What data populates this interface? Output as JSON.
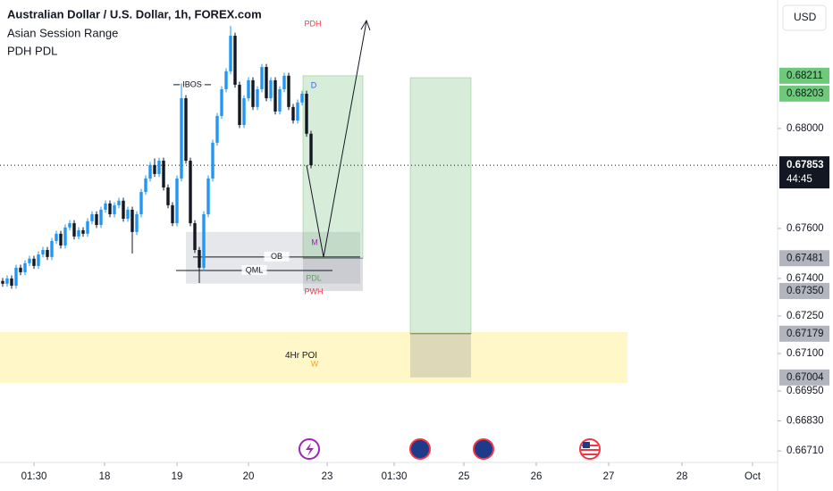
{
  "chart_data": {
    "type": "candlestick",
    "title": "Australian Dollar / U.S. Dollar, 1h, FOREX.com",
    "indicators": [
      "Asian Session Range",
      "PDH PDL"
    ],
    "currency": "USD",
    "up_color": "#2196f3",
    "down_color": "#131722",
    "open": [
      0.6739,
      0.67379,
      0.674,
      0.67371,
      0.67443,
      0.67425,
      0.67461,
      0.67479,
      0.6745,
      0.67496,
      0.67514,
      0.67486,
      0.6755,
      0.67579,
      0.67532,
      0.67604,
      0.67621,
      0.67568,
      0.67593,
      0.67579,
      0.67629,
      0.67657,
      0.67614,
      0.67675,
      0.677,
      0.67657,
      0.67693,
      0.67711,
      0.67639,
      0.67675,
      0.67586,
      0.67657,
      0.67746,
      0.678,
      0.67854,
      0.67818,
      0.67871,
      0.67764,
      0.67693,
      0.67621,
      0.678,
      0.68121,
      0.67871,
      0.67621,
      0.67514,
      0.67443,
      0.67657,
      0.678,
      0.67943,
      0.6805,
      0.68157,
      0.68229,
      0.68371,
      0.68175,
      0.68014,
      0.68121,
      0.68193,
      0.68086,
      0.68157,
      0.68246,
      0.68121,
      0.68193,
      0.68068,
      0.68157,
      0.68211,
      0.68086,
      0.68032,
      0.68104,
      0.68139,
      0.67979
    ],
    "high": [
      0.67402,
      0.67412,
      0.67412,
      0.67455,
      0.67455,
      0.67473,
      0.67491,
      0.67491,
      0.67508,
      0.67526,
      0.67526,
      0.67562,
      0.67591,
      0.67591,
      0.67616,
      0.67633,
      0.67633,
      0.67605,
      0.67605,
      0.67641,
      0.67669,
      0.67669,
      0.67687,
      0.67712,
      0.67712,
      0.67705,
      0.67723,
      0.67723,
      0.67687,
      0.67687,
      0.67669,
      0.67758,
      0.67812,
      0.67866,
      0.6788,
      0.67883,
      0.67883,
      0.67776,
      0.67705,
      0.67812,
      0.6818,
      0.68133,
      0.67883,
      0.67633,
      0.67526,
      0.67669,
      0.67812,
      0.67955,
      0.68062,
      0.68169,
      0.68241,
      0.6841,
      0.68383,
      0.68187,
      0.68133,
      0.68205,
      0.68205,
      0.68169,
      0.68258,
      0.68258,
      0.68205,
      0.68205,
      0.68169,
      0.68223,
      0.68223,
      0.68098,
      0.68116,
      0.68151,
      0.68151,
      0.67991
    ],
    "low": [
      0.67367,
      0.67367,
      0.67359,
      0.67359,
      0.67413,
      0.67413,
      0.67449,
      0.67438,
      0.67438,
      0.67484,
      0.67474,
      0.67474,
      0.67538,
      0.6752,
      0.6752,
      0.67592,
      0.67556,
      0.67556,
      0.67567,
      0.67567,
      0.67617,
      0.67602,
      0.67602,
      0.67663,
      0.67645,
      0.67645,
      0.67681,
      0.67627,
      0.67627,
      0.675,
      0.67574,
      0.67645,
      0.67734,
      0.67788,
      0.67806,
      0.67806,
      0.67752,
      0.67681,
      0.67609,
      0.67609,
      0.67788,
      0.67859,
      0.67609,
      0.67502,
      0.67382,
      0.67431,
      0.67645,
      0.67788,
      0.67931,
      0.68038,
      0.68145,
      0.68217,
      0.68163,
      0.68002,
      0.68002,
      0.68109,
      0.68074,
      0.68074,
      0.68145,
      0.68109,
      0.68109,
      0.68056,
      0.68056,
      0.68145,
      0.68074,
      0.6802,
      0.6802,
      0.68092,
      0.67967,
      0.67841
    ],
    "close": [
      0.67379,
      0.674,
      0.67371,
      0.67443,
      0.67425,
      0.67461,
      0.67479,
      0.6745,
      0.67496,
      0.67514,
      0.67486,
      0.6755,
      0.67579,
      0.67532,
      0.67604,
      0.67621,
      0.67568,
      0.67593,
      0.67579,
      0.67629,
      0.67657,
      0.67614,
      0.67675,
      0.677,
      0.67657,
      0.67693,
      0.67711,
      0.67639,
      0.67675,
      0.67586,
      0.67657,
      0.67746,
      0.678,
      0.67854,
      0.67818,
      0.67871,
      0.67764,
      0.67693,
      0.67621,
      0.678,
      0.68121,
      0.67871,
      0.67621,
      0.67514,
      0.67443,
      0.67657,
      0.678,
      0.67943,
      0.6805,
      0.68157,
      0.68229,
      0.68371,
      0.68175,
      0.68014,
      0.68121,
      0.68193,
      0.68086,
      0.68157,
      0.68246,
      0.68121,
      0.68193,
      0.68068,
      0.68157,
      0.68211,
      0.68086,
      0.68032,
      0.68104,
      0.68139,
      0.67979,
      0.67853
    ],
    "countdown": "44:45",
    "xlim": [
      -0.6,
      173.4
    ],
    "xticks": [
      {
        "value": 7,
        "label": "01:30"
      },
      {
        "value": 22.8,
        "label": "18"
      },
      {
        "value": 39,
        "label": "19"
      },
      {
        "value": 55,
        "label": "20"
      },
      {
        "value": 72.6,
        "label": "23"
      },
      {
        "value": 87.6,
        "label": "01:30"
      },
      {
        "value": 103.2,
        "label": "25"
      },
      {
        "value": 119.4,
        "label": "26"
      },
      {
        "value": 135.6,
        "label": "27"
      },
      {
        "value": 152,
        "label": "28"
      },
      {
        "value": 167.8,
        "label": "Oct"
      }
    ],
    "ylim": [
      0.66664,
      0.68514
    ],
    "yticks": [
      {
        "value": 0.68,
        "label": "0.68000"
      },
      {
        "value": 0.676,
        "label": "0.67600"
      },
      {
        "value": 0.674,
        "label": "0.67400"
      },
      {
        "value": 0.6725,
        "label": "0.67250"
      },
      {
        "value": 0.671,
        "label": "0.67100"
      },
      {
        "value": 0.6695,
        "label": "0.66950"
      },
      {
        "value": 0.6683,
        "label": "0.66830"
      },
      {
        "value": 0.6671,
        "label": "0.66710"
      }
    ],
    "positions": [
      {
        "start": 67.2,
        "end": 80.6,
        "target": 0.68211,
        "entry": 0.67481,
        "stop": {
          "value": 0.6735,
          "label": "0.67350"
        }
      },
      {
        "start": 91.2,
        "end": 104.8,
        "target": 0.68203,
        "entry": 0.67179,
        "stop": {
          "value": 0.67004,
          "label": "0.67004"
        }
      }
    ],
    "levels": [
      {
        "name": "OB",
        "value": 0.67486,
        "start": 42.6,
        "end": 80.0
      },
      {
        "name": "QML",
        "value": 0.67432,
        "start": 38.8,
        "end": 73.8
      },
      {
        "name": "IBOS",
        "value": 0.68175,
        "start": 38.2,
        "end": 46.6
      }
    ],
    "zones": [
      {
        "name": "4Hr POI",
        "low": 0.66982,
        "high": 0.67186,
        "start": -0.6,
        "end": 139.8,
        "color": "#fff6c2"
      },
      {
        "name": "",
        "low": 0.67379,
        "high": 0.67586,
        "start": 41.0,
        "end": 80.0,
        "color": "#e3e4e8"
      }
    ],
    "markers": [
      "PDH",
      "D",
      "M",
      "PDL",
      "PWH",
      "W"
    ]
  }
}
